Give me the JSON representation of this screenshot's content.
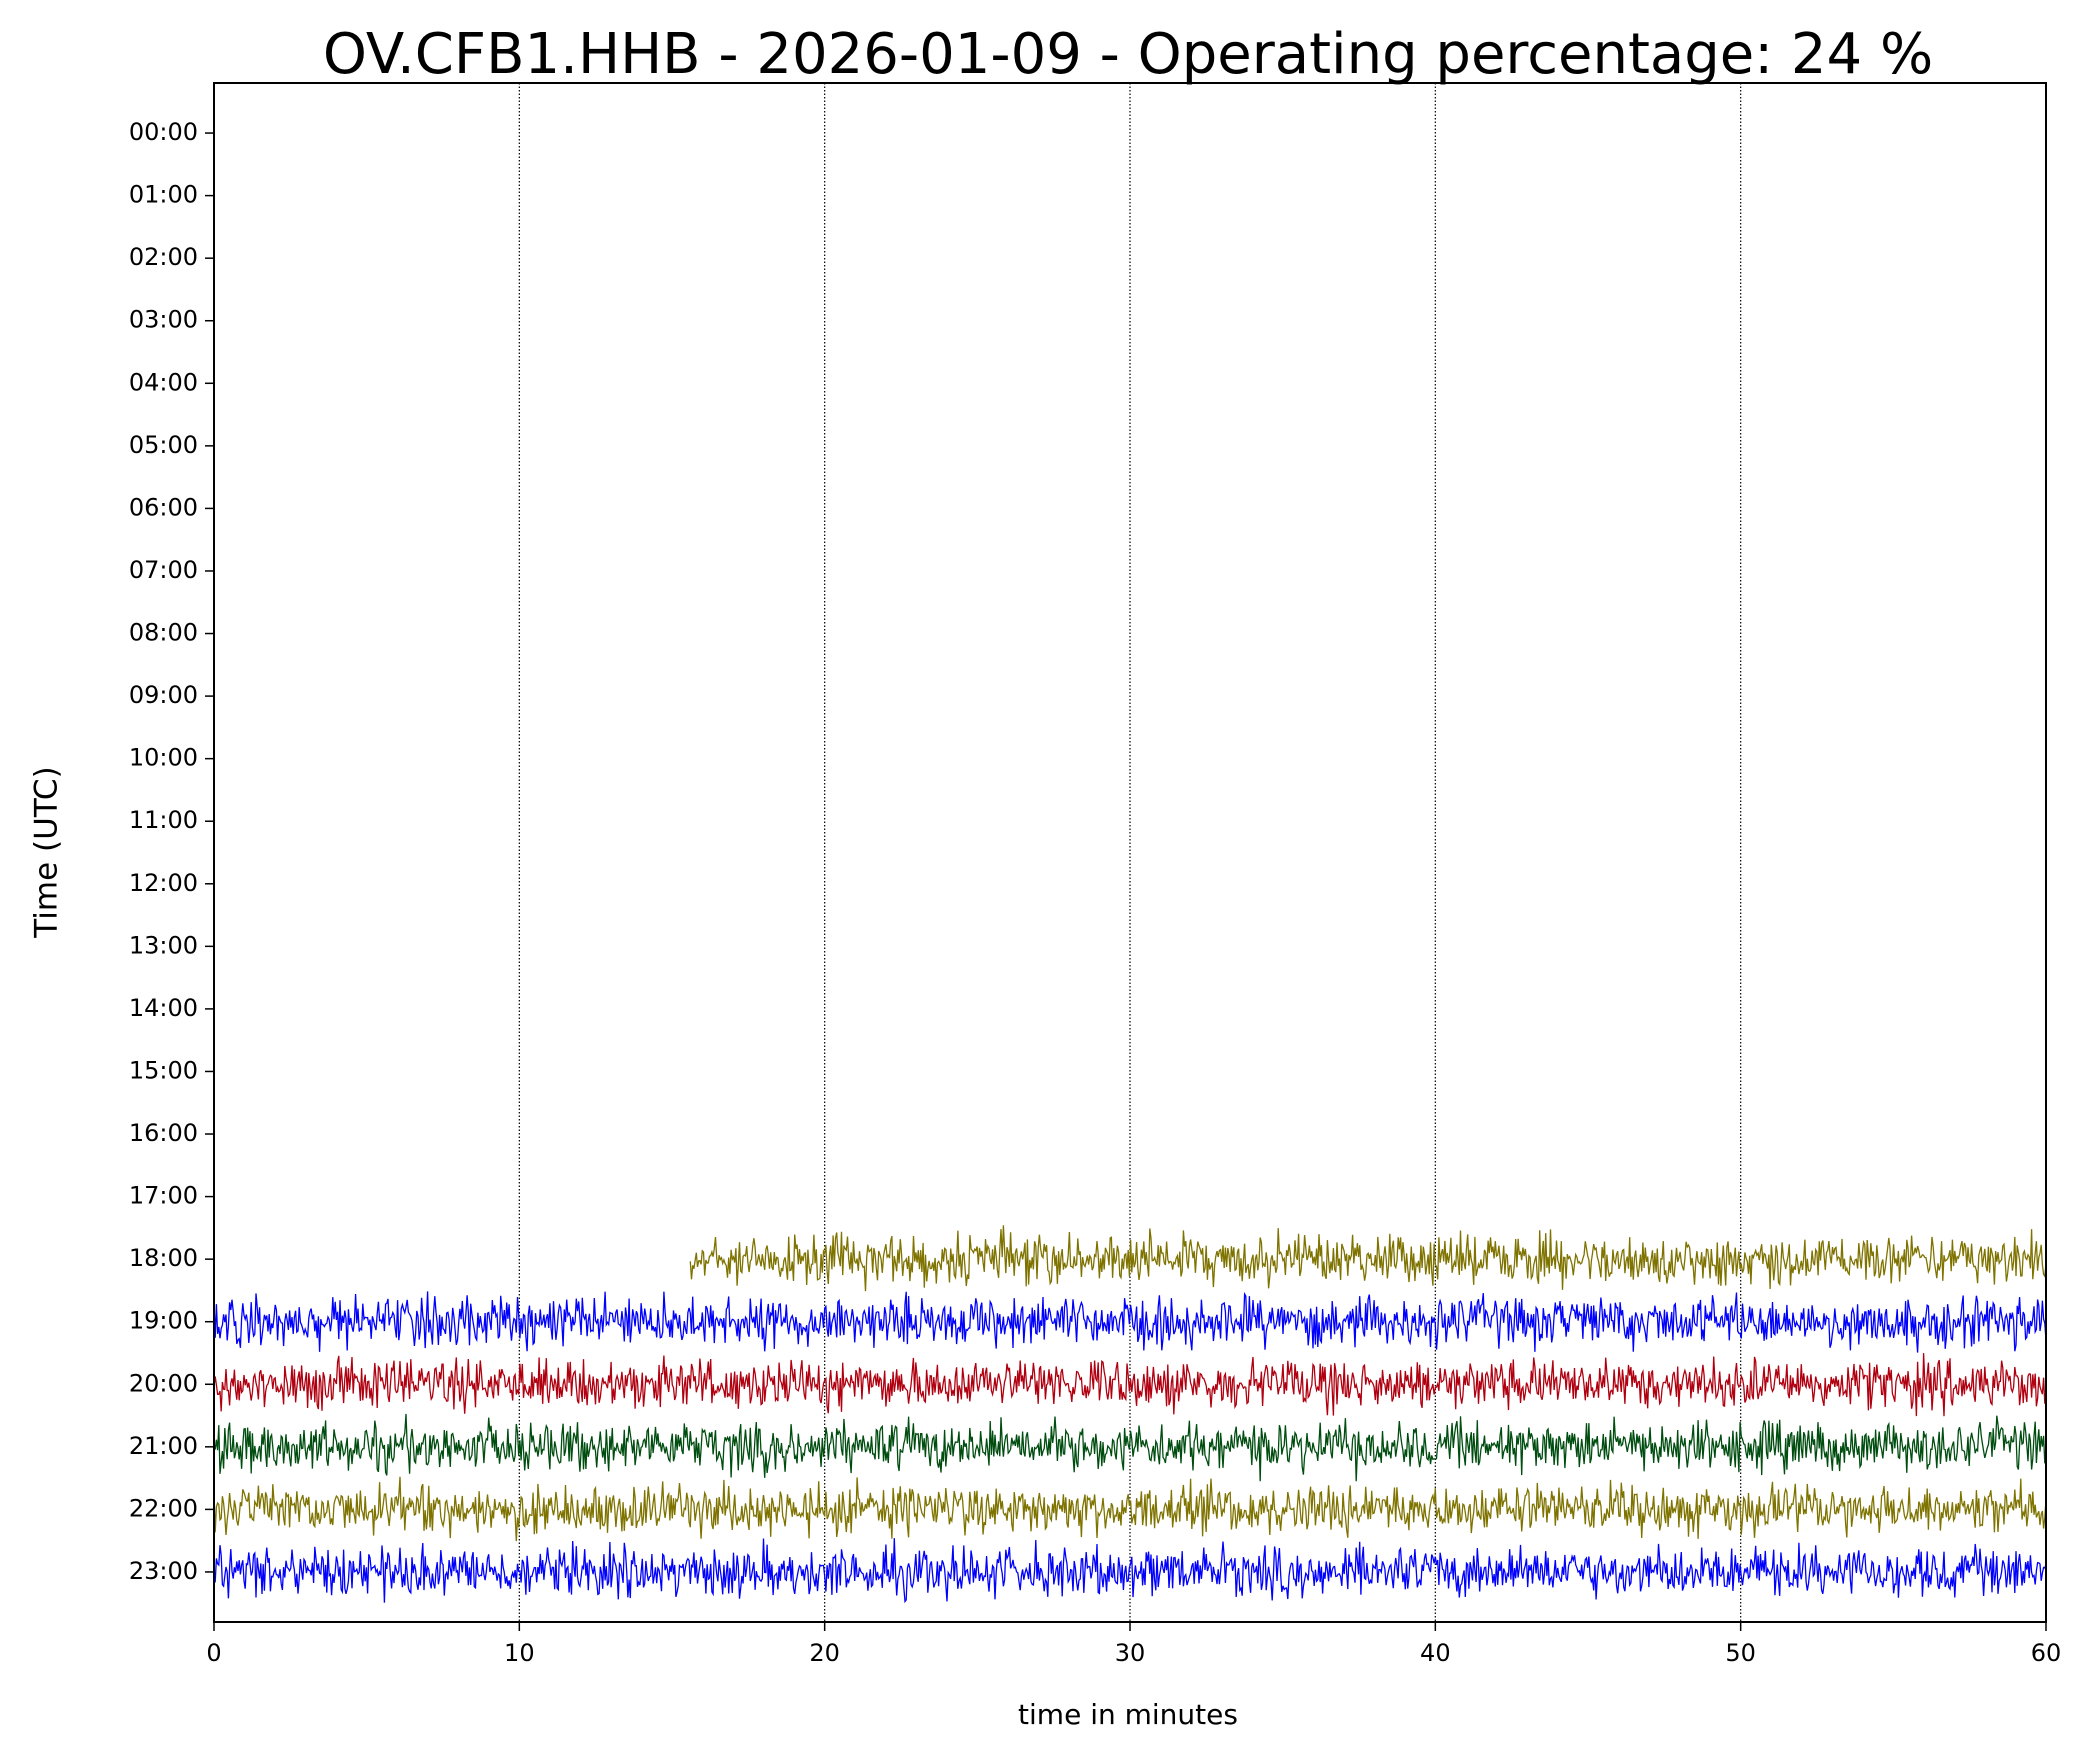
{
  "chart_data": {
    "type": "helicorder",
    "title": "OV.CFB1.HHB - 2026-01-09 - Operating percentage: 24 %",
    "xlabel": "time in minutes",
    "ylabel": "Time (UTC)",
    "xlim": [
      0,
      60
    ],
    "xticks": [
      0,
      10,
      20,
      30,
      40,
      50,
      60
    ],
    "ylim": [
      23.8,
      -0.8
    ],
    "yticks": [
      {
        "value": 0,
        "label": "00:00"
      },
      {
        "value": 1,
        "label": "01:00"
      },
      {
        "value": 2,
        "label": "02:00"
      },
      {
        "value": 3,
        "label": "03:00"
      },
      {
        "value": 4,
        "label": "04:00"
      },
      {
        "value": 5,
        "label": "05:00"
      },
      {
        "value": 6,
        "label": "06:00"
      },
      {
        "value": 7,
        "label": "07:00"
      },
      {
        "value": 8,
        "label": "08:00"
      },
      {
        "value": 9,
        "label": "09:00"
      },
      {
        "value": 10,
        "label": "10:00"
      },
      {
        "value": 11,
        "label": "11:00"
      },
      {
        "value": 12,
        "label": "12:00"
      },
      {
        "value": 13,
        "label": "13:00"
      },
      {
        "value": 14,
        "label": "14:00"
      },
      {
        "value": 15,
        "label": "15:00"
      },
      {
        "value": 16,
        "label": "16:00"
      },
      {
        "value": 17,
        "label": "17:00"
      },
      {
        "value": 18,
        "label": "18:00"
      },
      {
        "value": 19,
        "label": "19:00"
      },
      {
        "value": 20,
        "label": "20:00"
      },
      {
        "value": 21,
        "label": "21:00"
      },
      {
        "value": 22,
        "label": "22:00"
      },
      {
        "value": 23,
        "label": "23:00"
      }
    ],
    "grid": true,
    "traces": [
      {
        "row": 18,
        "color": "#7f7300",
        "x": [
          15.6,
          60
        ]
      },
      {
        "row": 19,
        "color": "#0000ff",
        "x": [
          0,
          60
        ]
      },
      {
        "row": 20,
        "color": "#b00010",
        "x": [
          0,
          60
        ]
      },
      {
        "row": 21,
        "color": "#004d10",
        "x": [
          0,
          60
        ]
      },
      {
        "row": 22,
        "color": "#7f7300",
        "x": [
          0,
          60
        ]
      },
      {
        "row": 23,
        "color": "#0000ff",
        "x": [
          0,
          60
        ]
      }
    ]
  }
}
